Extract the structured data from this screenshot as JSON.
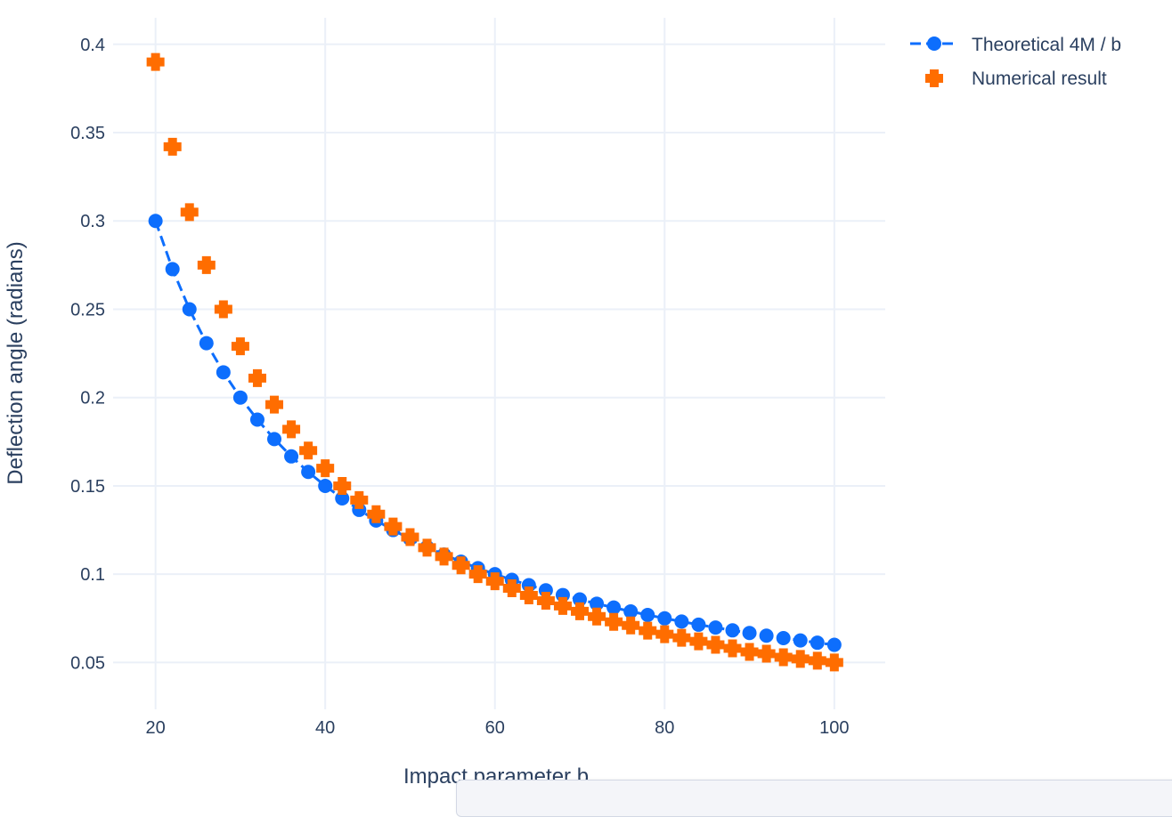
{
  "chart_data": {
    "type": "scatter",
    "xlabel": "Impact parameter b",
    "ylabel": "Deflection angle (radians)",
    "xlim": [
      15,
      106
    ],
    "ylim": [
      0.0235,
      0.415
    ],
    "xticks": [
      20,
      40,
      60,
      80,
      100
    ],
    "yticks": [
      0.05,
      0.1,
      0.15,
      0.2,
      0.25,
      0.3,
      0.35,
      0.4
    ],
    "ytick_labels": [
      "0.05",
      "0.1",
      "0.15",
      "0.2",
      "0.25",
      "0.3",
      "0.35",
      "0.4"
    ],
    "grid": true,
    "legend_position": "top-right outside",
    "x": [
      20,
      22,
      24,
      26,
      28,
      30,
      32,
      34,
      36,
      38,
      40,
      42,
      44,
      46,
      48,
      50,
      52,
      54,
      56,
      58,
      60,
      62,
      64,
      66,
      68,
      70,
      72,
      74,
      76,
      78,
      80,
      82,
      84,
      86,
      88,
      90,
      92,
      94,
      96,
      98,
      100
    ],
    "series": [
      {
        "name": "Theoretical 4M / b",
        "mode": "lines+markers",
        "line_dash": "dash",
        "marker": "circle",
        "color": "#0d6efd",
        "values": [
          0.3,
          0.2727,
          0.25,
          0.2308,
          0.2143,
          0.2,
          0.1875,
          0.1765,
          0.1667,
          0.1579,
          0.15,
          0.1429,
          0.1364,
          0.1304,
          0.125,
          0.12,
          0.1154,
          0.1111,
          0.1071,
          0.1034,
          0.1,
          0.0968,
          0.0938,
          0.0909,
          0.0882,
          0.0857,
          0.0833,
          0.0811,
          0.0789,
          0.0769,
          0.075,
          0.0732,
          0.0714,
          0.0698,
          0.0682,
          0.0667,
          0.0652,
          0.0638,
          0.0625,
          0.0612,
          0.06
        ]
      },
      {
        "name": "Numerical result",
        "mode": "markers",
        "marker": "cross",
        "color": "#ff6d00",
        "values": [
          0.39,
          0.342,
          0.305,
          0.275,
          0.25,
          0.229,
          0.211,
          0.196,
          0.182,
          0.17,
          0.16,
          0.15,
          0.142,
          0.134,
          0.127,
          0.121,
          0.115,
          0.11,
          0.105,
          0.1,
          0.096,
          0.092,
          0.088,
          0.085,
          0.082,
          0.079,
          0.076,
          0.073,
          0.071,
          0.068,
          0.066,
          0.064,
          0.062,
          0.06,
          0.058,
          0.056,
          0.055,
          0.053,
          0.052,
          0.051,
          0.05
        ]
      }
    ]
  }
}
